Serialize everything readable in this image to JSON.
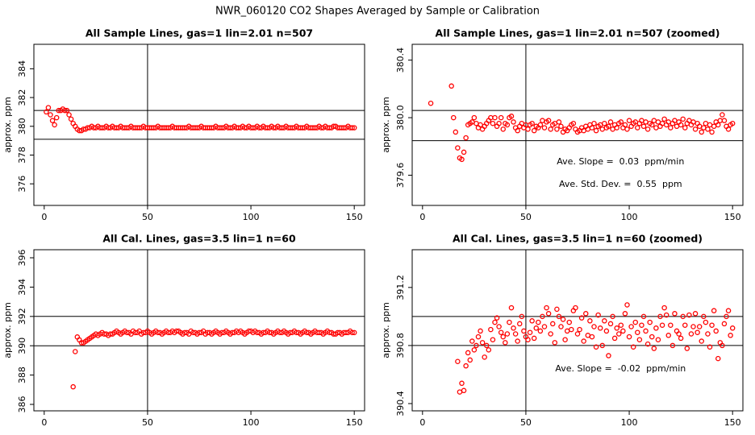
{
  "title": "NWR_060120  CO2 Shapes Averaged by Sample or Calibration",
  "chart_data": [
    {
      "type": "scatter",
      "title": "All Sample Lines, gas=1 lin=2.01 n=507",
      "ylabel": "approx. ppm",
      "color": "#ff0000",
      "x": [
        1,
        2,
        3,
        4,
        5,
        6,
        7,
        8,
        9,
        10,
        11,
        12,
        13,
        14,
        15,
        16,
        17,
        18,
        19,
        20,
        21,
        22,
        23,
        24,
        25,
        26,
        27,
        28,
        29,
        30,
        31,
        32,
        33,
        34,
        35,
        36,
        37,
        38,
        39,
        40,
        41,
        42,
        43,
        44,
        45,
        46,
        47,
        48,
        49,
        50,
        51,
        52,
        53,
        54,
        55,
        56,
        57,
        58,
        59,
        60,
        61,
        62,
        63,
        64,
        65,
        66,
        67,
        68,
        69,
        70,
        71,
        72,
        73,
        74,
        75,
        76,
        77,
        78,
        79,
        80,
        81,
        82,
        83,
        84,
        85,
        86,
        87,
        88,
        89,
        90,
        91,
        92,
        93,
        94,
        95,
        96,
        97,
        98,
        99,
        100,
        101,
        102,
        103,
        104,
        105,
        106,
        107,
        108,
        109,
        110,
        111,
        112,
        113,
        114,
        115,
        116,
        117,
        118,
        119,
        120,
        121,
        122,
        123,
        124,
        125,
        126,
        127,
        128,
        129,
        130,
        131,
        132,
        133,
        134,
        135,
        136,
        137,
        138,
        139,
        140,
        141,
        142,
        143,
        144,
        145,
        146,
        147,
        148,
        149,
        150
      ],
      "values": [
        381.0,
        381.3,
        380.8,
        380.4,
        380.1,
        380.6,
        381.1,
        381.1,
        381.2,
        381.1,
        381.1,
        380.8,
        380.5,
        380.2,
        380.0,
        379.8,
        379.7,
        379.7,
        379.8,
        379.8,
        379.9,
        379.9,
        380.0,
        379.9,
        379.9,
        380.0,
        379.9,
        379.9,
        379.9,
        380.0,
        379.9,
        379.9,
        380.0,
        379.9,
        379.9,
        379.9,
        380.0,
        379.9,
        379.9,
        379.9,
        379.9,
        380.0,
        379.9,
        379.9,
        379.9,
        379.9,
        379.9,
        380.0,
        379.9,
        379.9,
        379.9,
        379.9,
        379.9,
        379.9,
        380.0,
        379.9,
        379.9,
        379.9,
        379.9,
        379.9,
        379.9,
        380.0,
        379.9,
        379.9,
        379.9,
        379.9,
        379.9,
        379.9,
        379.9,
        380.0,
        379.9,
        379.9,
        379.9,
        379.9,
        379.9,
        380.0,
        379.9,
        379.9,
        379.9,
        379.9,
        379.9,
        379.9,
        380.0,
        379.9,
        379.9,
        379.9,
        379.9,
        380.0,
        379.9,
        379.9,
        379.9,
        380.0,
        379.9,
        379.9,
        379.9,
        380.0,
        379.9,
        379.9,
        380.0,
        379.9,
        379.9,
        379.9,
        380.0,
        379.9,
        379.9,
        380.0,
        379.9,
        379.9,
        379.9,
        380.0,
        379.9,
        379.9,
        380.0,
        379.9,
        379.9,
        379.9,
        380.0,
        379.9,
        379.9,
        379.9,
        379.9,
        380.0,
        379.9,
        379.9,
        379.9,
        379.9,
        380.0,
        379.9,
        379.9,
        379.9,
        379.9,
        379.9,
        380.0,
        379.9,
        379.9,
        380.0,
        379.9,
        379.9,
        379.9,
        380.0,
        380.0,
        379.9,
        379.9,
        379.9,
        379.9,
        379.9,
        380.0,
        379.9,
        379.9,
        379.9
      ],
      "xlim": [
        -5,
        155
      ],
      "ylim": [
        374.5,
        385.7
      ],
      "xticks": [
        0,
        50,
        100,
        150
      ],
      "yticks": [
        376,
        378,
        380,
        382,
        384
      ],
      "hlines": [
        381.1,
        379.1
      ],
      "vlines": [
        50
      ]
    },
    {
      "type": "scatter",
      "title": "All Sample Lines, gas=1 lin=2.01 n=507 (zoomed)",
      "ylabel": "approx. ppm",
      "color": "#ff0000",
      "x": [
        4,
        14,
        15,
        16,
        17,
        18,
        19,
        20,
        21,
        22,
        23,
        24,
        25,
        26,
        27,
        28,
        29,
        30,
        31,
        32,
        33,
        34,
        35,
        36,
        37,
        38,
        39,
        40,
        41,
        42,
        43,
        44,
        45,
        46,
        47,
        48,
        49,
        50,
        51,
        52,
        53,
        54,
        55,
        56,
        57,
        58,
        59,
        60,
        61,
        62,
        63,
        64,
        65,
        66,
        67,
        68,
        69,
        70,
        71,
        72,
        73,
        74,
        75,
        76,
        77,
        78,
        79,
        80,
        81,
        82,
        83,
        84,
        85,
        86,
        87,
        88,
        89,
        90,
        91,
        92,
        93,
        94,
        95,
        96,
        97,
        98,
        99,
        100,
        101,
        102,
        103,
        104,
        105,
        106,
        107,
        108,
        109,
        110,
        111,
        112,
        113,
        114,
        115,
        116,
        117,
        118,
        119,
        120,
        121,
        122,
        123,
        124,
        125,
        126,
        127,
        128,
        129,
        130,
        131,
        132,
        133,
        134,
        135,
        136,
        137,
        138,
        139,
        140,
        141,
        142,
        143,
        144,
        145,
        146,
        147,
        148,
        149,
        150
      ],
      "values": [
        380.1,
        380.22,
        380.0,
        379.9,
        379.79,
        379.72,
        379.71,
        379.76,
        379.86,
        379.95,
        379.96,
        379.97,
        380.0,
        379.96,
        379.93,
        379.95,
        379.92,
        379.94,
        379.96,
        379.98,
        380.0,
        379.96,
        380.0,
        379.94,
        379.96,
        380.0,
        379.92,
        379.96,
        379.95,
        380.0,
        380.01,
        379.97,
        379.93,
        379.91,
        379.94,
        379.96,
        379.93,
        379.95,
        379.92,
        379.95,
        379.96,
        379.91,
        379.94,
        379.93,
        379.95,
        379.98,
        379.93,
        379.97,
        379.98,
        379.92,
        379.95,
        379.96,
        379.92,
        379.97,
        379.94,
        379.9,
        379.92,
        379.91,
        379.93,
        379.95,
        379.96,
        379.92,
        379.9,
        379.91,
        379.93,
        379.91,
        379.94,
        379.92,
        379.95,
        379.93,
        379.96,
        379.91,
        379.94,
        379.95,
        379.92,
        379.96,
        379.93,
        379.94,
        379.97,
        379.92,
        379.95,
        379.93,
        379.96,
        379.97,
        379.93,
        379.95,
        379.92,
        379.98,
        379.94,
        379.96,
        379.97,
        379.93,
        379.96,
        379.98,
        379.94,
        379.97,
        379.92,
        379.96,
        379.95,
        379.98,
        379.93,
        379.97,
        379.94,
        379.96,
        379.99,
        379.95,
        379.97,
        379.93,
        379.96,
        379.98,
        379.94,
        379.97,
        379.95,
        379.99,
        379.93,
        379.96,
        379.98,
        379.95,
        379.97,
        379.92,
        379.96,
        379.94,
        379.9,
        379.93,
        379.96,
        379.92,
        379.95,
        379.9,
        379.94,
        379.97,
        379.95,
        379.98,
        380.02,
        379.98,
        379.94,
        379.92,
        379.95,
        379.96
      ],
      "xlim": [
        -5,
        155
      ],
      "ylim": [
        379.39,
        380.51
      ],
      "xticks": [
        0,
        50,
        100,
        150
      ],
      "yticks": [
        {
          "value": 379.6,
          "label": "379.6"
        },
        {
          "value": 380.0,
          "label": "380.0"
        },
        {
          "value": 380.4,
          "label": "380.4"
        }
      ],
      "hlines": [
        380.05,
        379.84
      ],
      "vlines": [
        50
      ],
      "annotations": [
        "Ave. Slope =  0.03  ppm/min",
        "Ave. Std. Dev. =  0.55  ppm"
      ]
    },
    {
      "type": "scatter",
      "title": "All Cal. Lines, gas=3.5 lin=1 n=60",
      "ylabel": "approx. ppm",
      "color": "#ff0000",
      "x": [
        14,
        15,
        16,
        17,
        18,
        19,
        20,
        21,
        22,
        23,
        24,
        25,
        26,
        27,
        28,
        29,
        30,
        31,
        32,
        33,
        34,
        35,
        36,
        37,
        38,
        39,
        40,
        41,
        42,
        43,
        44,
        45,
        46,
        47,
        48,
        49,
        50,
        51,
        52,
        53,
        54,
        55,
        56,
        57,
        58,
        59,
        60,
        61,
        62,
        63,
        64,
        65,
        66,
        67,
        68,
        69,
        70,
        71,
        72,
        73,
        74,
        75,
        76,
        77,
        78,
        79,
        80,
        81,
        82,
        83,
        84,
        85,
        86,
        87,
        88,
        89,
        90,
        91,
        92,
        93,
        94,
        95,
        96,
        97,
        98,
        99,
        100,
        101,
        102,
        103,
        104,
        105,
        106,
        107,
        108,
        109,
        110,
        111,
        112,
        113,
        114,
        115,
        116,
        117,
        118,
        119,
        120,
        121,
        122,
        123,
        124,
        125,
        126,
        127,
        128,
        129,
        130,
        131,
        132,
        133,
        134,
        135,
        136,
        137,
        138,
        139,
        140,
        141,
        142,
        143,
        144,
        145,
        146,
        147,
        148,
        149,
        150
      ],
      "values": [
        387.2,
        389.6,
        390.6,
        390.4,
        390.2,
        390.2,
        390.3,
        390.4,
        390.5,
        390.6,
        390.7,
        390.8,
        390.7,
        390.8,
        390.9,
        390.8,
        390.8,
        390.7,
        390.8,
        390.8,
        390.9,
        391.0,
        390.9,
        390.8,
        390.9,
        391.0,
        390.9,
        390.9,
        390.8,
        391.0,
        390.9,
        390.9,
        391.0,
        390.8,
        390.9,
        390.9,
        391.0,
        390.9,
        390.8,
        390.9,
        391.0,
        390.9,
        390.9,
        390.8,
        390.9,
        391.0,
        390.9,
        390.9,
        391.0,
        390.9,
        391.0,
        391.0,
        390.9,
        390.8,
        390.9,
        390.9,
        390.8,
        391.0,
        390.9,
        390.9,
        390.8,
        390.9,
        390.9,
        391.0,
        390.8,
        390.9,
        390.9,
        390.8,
        390.9,
        391.0,
        390.9,
        390.8,
        390.9,
        390.9,
        391.0,
        390.9,
        390.8,
        390.9,
        390.9,
        391.0,
        390.9,
        391.0,
        390.9,
        390.8,
        390.9,
        391.0,
        391.0,
        390.9,
        391.0,
        390.9,
        390.9,
        390.8,
        390.9,
        390.9,
        391.0,
        390.9,
        390.9,
        390.8,
        390.9,
        391.0,
        390.9,
        390.9,
        391.0,
        390.9,
        390.8,
        390.9,
        390.9,
        391.0,
        390.9,
        390.9,
        390.8,
        390.9,
        391.0,
        390.9,
        390.9,
        390.8,
        390.9,
        391.0,
        390.9,
        390.9,
        390.9,
        390.8,
        390.9,
        391.0,
        390.9,
        390.9,
        390.8,
        390.8,
        390.9,
        390.9,
        390.8,
        390.9,
        390.9,
        390.9,
        391.0,
        390.9,
        390.9
      ],
      "xlim": [
        -5,
        155
      ],
      "ylim": [
        385.56,
        396.55
      ],
      "xticks": [
        0,
        50,
        100,
        150
      ],
      "yticks": [
        386,
        388,
        390,
        392,
        394,
        396
      ],
      "hlines": [
        392.0,
        390.0
      ],
      "vlines": [
        50
      ]
    },
    {
      "type": "scatter",
      "title": "All Cal. Lines, gas=3.5 lin=1 n=60 (zoomed)",
      "ylabel": "approx. ppm",
      "color": "#ff0000",
      "x": [
        17,
        18,
        19,
        20,
        21,
        22,
        23,
        24,
        25,
        26,
        27,
        28,
        29,
        30,
        31,
        32,
        33,
        34,
        35,
        36,
        37,
        38,
        39,
        40,
        41,
        42,
        43,
        44,
        45,
        46,
        47,
        48,
        49,
        50,
        51,
        52,
        53,
        54,
        55,
        56,
        57,
        58,
        59,
        60,
        61,
        62,
        63,
        64,
        65,
        66,
        67,
        68,
        69,
        70,
        71,
        72,
        73,
        74,
        75,
        76,
        77,
        78,
        79,
        80,
        81,
        82,
        83,
        84,
        85,
        86,
        87,
        88,
        89,
        90,
        91,
        92,
        93,
        94,
        95,
        96,
        97,
        98,
        99,
        100,
        101,
        102,
        103,
        104,
        105,
        106,
        107,
        108,
        109,
        110,
        111,
        112,
        113,
        114,
        115,
        116,
        117,
        118,
        119,
        120,
        121,
        122,
        123,
        124,
        125,
        126,
        127,
        128,
        129,
        130,
        131,
        132,
        133,
        134,
        135,
        136,
        137,
        138,
        139,
        140,
        141,
        142,
        143,
        144,
        145,
        146,
        147,
        148,
        149,
        150
      ],
      "values": [
        390.69,
        390.48,
        390.54,
        390.49,
        390.66,
        390.75,
        390.7,
        390.83,
        390.77,
        390.8,
        390.86,
        390.9,
        390.82,
        390.72,
        390.8,
        390.77,
        390.91,
        390.84,
        390.96,
        390.99,
        390.93,
        390.89,
        390.86,
        390.82,
        390.88,
        390.96,
        391.06,
        390.92,
        390.88,
        390.83,
        390.95,
        391.0,
        390.9,
        390.86,
        390.84,
        390.89,
        390.97,
        390.85,
        390.92,
        390.96,
        390.9,
        391.0,
        390.93,
        391.06,
        391.02,
        390.88,
        390.95,
        390.82,
        391.05,
        391.0,
        390.93,
        390.98,
        390.84,
        390.9,
        390.96,
        390.91,
        391.04,
        391.06,
        390.88,
        390.91,
        390.99,
        390.83,
        391.02,
        390.87,
        390.97,
        390.86,
        390.93,
        390.79,
        391.01,
        390.92,
        390.8,
        390.97,
        390.9,
        390.73,
        390.95,
        391.0,
        390.85,
        390.92,
        390.88,
        390.94,
        390.9,
        391.02,
        391.08,
        390.86,
        390.93,
        390.79,
        390.96,
        390.89,
        390.84,
        390.94,
        391.0,
        390.9,
        390.81,
        390.96,
        390.86,
        390.78,
        390.92,
        390.84,
        391.0,
        390.94,
        391.06,
        391.01,
        390.87,
        390.94,
        390.8,
        391.02,
        390.9,
        390.88,
        390.85,
        391.0,
        390.94,
        390.78,
        391.01,
        390.88,
        390.93,
        391.02,
        390.89,
        390.93,
        390.83,
        391.0,
        390.96,
        390.88,
        390.79,
        390.94,
        391.04,
        390.9,
        390.71,
        390.82,
        390.8,
        390.95,
        391.0,
        391.04,
        390.87,
        390.92
      ],
      "xlim": [
        -5,
        155
      ],
      "ylim": [
        390.35,
        391.46
      ],
      "xticks": [
        0,
        50,
        100,
        150
      ],
      "yticks": [
        {
          "value": 390.4,
          "label": "390.4"
        },
        {
          "value": 390.8,
          "label": "390.8"
        },
        {
          "value": 391.2,
          "label": "391.2"
        }
      ],
      "hlines": [
        391.0,
        390.8
      ],
      "vlines": [
        50
      ],
      "annotations": [
        "Ave. Slope =  -0.02  ppm/min"
      ]
    }
  ]
}
